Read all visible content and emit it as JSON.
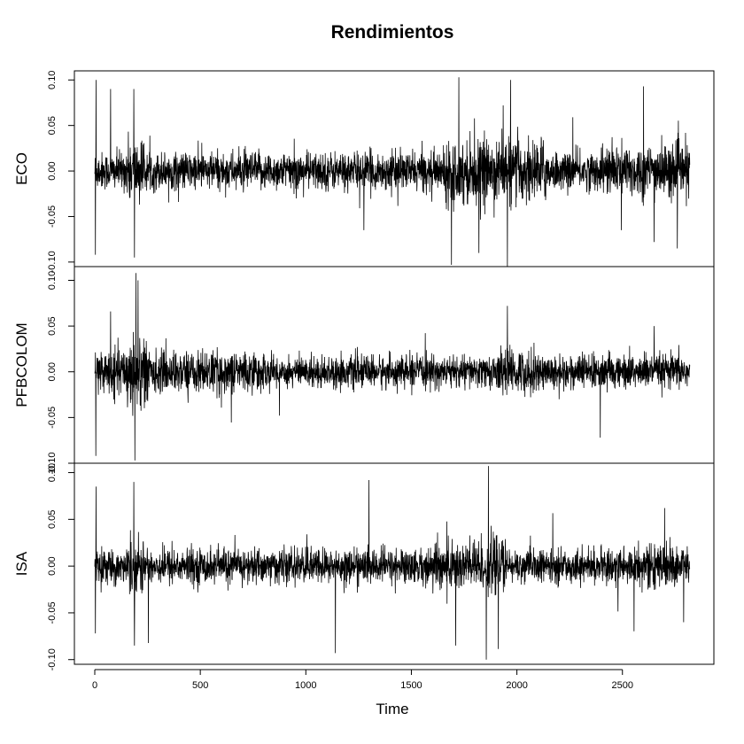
{
  "chart_data": {
    "type": "line",
    "title": "Rendimientos",
    "xlabel": "Time",
    "xlim": [
      0,
      2820
    ],
    "x_ticks": [
      0,
      500,
      1000,
      1500,
      2000,
      2500
    ],
    "x_tick_labels": [
      "0",
      "500",
      "1000",
      "1500",
      "2000",
      "2500"
    ],
    "n_points": 2820,
    "panels": [
      {
        "name": "ECO",
        "ylim": [
          -0.105,
          0.11
        ],
        "y_ticks": [
          -0.1,
          -0.05,
          0.0,
          0.05,
          0.1
        ],
        "y_tick_labels": [
          "-0.10",
          "-0.05",
          "0.00",
          "0.05",
          "0.10"
        ],
        "color": "#000000",
        "volatility_regimes": [
          {
            "x": [
              0,
              150
            ],
            "sd": 0.012
          },
          {
            "x": [
              150,
              230
            ],
            "sd": 0.02
          },
          {
            "x": [
              230,
              1650
            ],
            "sd": 0.012
          },
          {
            "x": [
              1650,
              2150
            ],
            "sd": 0.02
          },
          {
            "x": [
              2150,
              2400
            ],
            "sd": 0.012
          },
          {
            "x": [
              2400,
              2820
            ],
            "sd": 0.017
          }
        ],
        "spikes": [
          {
            "x": 3,
            "y": -0.092
          },
          {
            "x": 6,
            "y": 0.1
          },
          {
            "x": 75,
            "y": 0.09
          },
          {
            "x": 185,
            "y": 0.09
          },
          {
            "x": 188,
            "y": -0.095
          },
          {
            "x": 1275,
            "y": -0.065
          },
          {
            "x": 1690,
            "y": -0.103
          },
          {
            "x": 1725,
            "y": 0.103
          },
          {
            "x": 1820,
            "y": -0.09
          },
          {
            "x": 1935,
            "y": 0.072
          },
          {
            "x": 1955,
            "y": -0.105
          },
          {
            "x": 1970,
            "y": 0.1
          },
          {
            "x": 2265,
            "y": 0.059
          },
          {
            "x": 2495,
            "y": -0.065
          },
          {
            "x": 2600,
            "y": 0.093
          },
          {
            "x": 2650,
            "y": -0.078
          },
          {
            "x": 2760,
            "y": -0.085
          }
        ]
      },
      {
        "name": "PFBCOLOM",
        "ylim": [
          -0.1,
          0.115
        ],
        "y_ticks": [
          -0.1,
          -0.05,
          0.0,
          0.05,
          0.1
        ],
        "y_tick_labels": [
          "-0.10",
          "-0.05",
          "0.00",
          "0.05",
          "0.10"
        ],
        "color": "#000000",
        "volatility_regimes": [
          {
            "x": [
              0,
              150
            ],
            "sd": 0.014
          },
          {
            "x": [
              150,
              250
            ],
            "sd": 0.025
          },
          {
            "x": [
              250,
              800
            ],
            "sd": 0.013
          },
          {
            "x": [
              800,
              1900
            ],
            "sd": 0.01
          },
          {
            "x": [
              1900,
              2100
            ],
            "sd": 0.014
          },
          {
            "x": [
              2100,
              2820
            ],
            "sd": 0.011
          }
        ],
        "spikes": [
          {
            "x": 5,
            "y": -0.092
          },
          {
            "x": 75,
            "y": 0.066
          },
          {
            "x": 190,
            "y": -0.097
          },
          {
            "x": 195,
            "y": 0.108
          },
          {
            "x": 205,
            "y": 0.1
          },
          {
            "x": 875,
            "y": -0.048
          },
          {
            "x": 1955,
            "y": 0.072
          },
          {
            "x": 2200,
            "y": -0.03
          },
          {
            "x": 2395,
            "y": -0.072
          },
          {
            "x": 2650,
            "y": 0.05
          }
        ]
      },
      {
        "name": "ISA",
        "ylim": [
          -0.105,
          0.11
        ],
        "y_ticks": [
          -0.1,
          -0.05,
          0.0,
          0.05,
          0.1
        ],
        "y_tick_labels": [
          "-0.10",
          "-0.05",
          "0.00",
          "0.05",
          "0.10"
        ],
        "color": "#000000",
        "volatility_regimes": [
          {
            "x": [
              0,
              150
            ],
            "sd": 0.01
          },
          {
            "x": [
              150,
              230
            ],
            "sd": 0.018
          },
          {
            "x": [
              230,
              1600
            ],
            "sd": 0.011
          },
          {
            "x": [
              1600,
              1950
            ],
            "sd": 0.017
          },
          {
            "x": [
              1950,
              2450
            ],
            "sd": 0.01
          },
          {
            "x": [
              2450,
              2820
            ],
            "sd": 0.013
          }
        ],
        "spikes": [
          {
            "x": 3,
            "y": -0.072
          },
          {
            "x": 6,
            "y": 0.085
          },
          {
            "x": 185,
            "y": 0.09
          },
          {
            "x": 188,
            "y": -0.085
          },
          {
            "x": 1140,
            "y": -0.093
          },
          {
            "x": 1710,
            "y": -0.085
          },
          {
            "x": 1855,
            "y": -0.1
          },
          {
            "x": 1865,
            "y": 0.107
          },
          {
            "x": 2700,
            "y": 0.062
          },
          {
            "x": 2790,
            "y": -0.06
          }
        ]
      }
    ]
  }
}
